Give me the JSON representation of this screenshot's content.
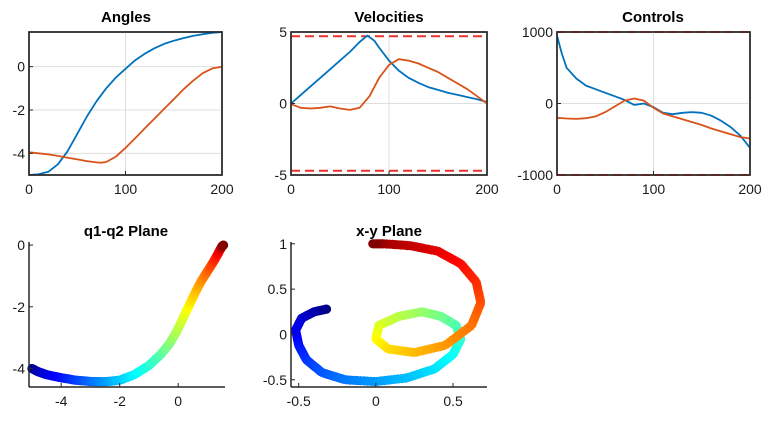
{
  "chart_data": [
    {
      "type": "line",
      "title": "Angles",
      "xlim": [
        0,
        200
      ],
      "ylim": [
        -5,
        1.6
      ],
      "xticks": [
        0,
        100,
        200
      ],
      "xticklabels": [
        "0",
        "100",
        "200"
      ],
      "yticks": [
        0,
        -2,
        -4
      ],
      "yticklabels": [
        "0",
        "-2",
        "-4"
      ],
      "grid": true,
      "box": true,
      "series": [
        {
          "color": "#0072BD",
          "x": [
            0,
            10,
            20,
            30,
            40,
            50,
            60,
            70,
            80,
            90,
            100,
            110,
            120,
            130,
            140,
            150,
            160,
            170,
            180,
            190,
            200
          ],
          "y": [
            -5.0,
            -4.97,
            -4.85,
            -4.5,
            -3.9,
            -3.1,
            -2.3,
            -1.6,
            -1.0,
            -0.5,
            -0.1,
            0.3,
            0.6,
            0.85,
            1.05,
            1.2,
            1.32,
            1.42,
            1.5,
            1.56,
            1.6
          ]
        },
        {
          "color": "#D95319",
          "x": [
            0,
            10,
            20,
            30,
            40,
            50,
            60,
            70,
            75,
            80,
            90,
            100,
            110,
            120,
            130,
            140,
            150,
            160,
            170,
            180,
            190,
            200
          ],
          "y": [
            -3.95,
            -4.0,
            -4.05,
            -4.12,
            -4.2,
            -4.28,
            -4.36,
            -4.42,
            -4.43,
            -4.4,
            -4.15,
            -3.75,
            -3.3,
            -2.85,
            -2.4,
            -1.95,
            -1.5,
            -1.05,
            -0.65,
            -0.3,
            -0.08,
            0.0
          ]
        }
      ]
    },
    {
      "type": "line",
      "title": "Velocities",
      "xlim": [
        0,
        200
      ],
      "ylim": [
        -5,
        5
      ],
      "xticks": [
        0,
        100,
        200
      ],
      "xticklabels": [
        "0",
        "100",
        "200"
      ],
      "yticks": [
        5,
        0,
        -5
      ],
      "yticklabels": [
        "5",
        "0",
        "-5"
      ],
      "grid": true,
      "box": true,
      "reference_lines": [
        4.7,
        -4.7
      ],
      "series": [
        {
          "color": "#0072BD",
          "x": [
            0,
            10,
            20,
            30,
            40,
            50,
            60,
            70,
            78,
            85,
            90,
            100,
            110,
            120,
            130,
            140,
            150,
            160,
            170,
            180,
            190,
            200
          ],
          "y": [
            0.0,
            0.6,
            1.2,
            1.8,
            2.4,
            3.0,
            3.6,
            4.3,
            4.75,
            4.4,
            3.9,
            3.0,
            2.3,
            1.8,
            1.45,
            1.15,
            0.95,
            0.75,
            0.6,
            0.45,
            0.3,
            0.1
          ]
        },
        {
          "color": "#D95319",
          "x": [
            0,
            10,
            20,
            30,
            40,
            50,
            60,
            70,
            80,
            90,
            100,
            110,
            120,
            130,
            140,
            150,
            160,
            170,
            180,
            190,
            200
          ],
          "y": [
            -0.05,
            -0.3,
            -0.35,
            -0.3,
            -0.2,
            -0.35,
            -0.45,
            -0.3,
            0.5,
            1.8,
            2.7,
            3.1,
            3.0,
            2.8,
            2.5,
            2.2,
            1.8,
            1.4,
            1.0,
            0.5,
            0.0
          ]
        }
      ]
    },
    {
      "type": "line",
      "title": "Controls",
      "xlim": [
        0,
        200
      ],
      "ylim": [
        -1000,
        1000
      ],
      "xticks": [
        0,
        100,
        200
      ],
      "xticklabels": [
        "0",
        "100",
        "200"
      ],
      "yticks": [
        1000,
        0,
        -1000
      ],
      "yticklabels": [
        "1000",
        "0",
        "-1000"
      ],
      "grid": true,
      "box": true,
      "reference_lines": [
        1000,
        -1000
      ],
      "series": [
        {
          "color": "#0072BD",
          "x": [
            0,
            5,
            10,
            20,
            30,
            40,
            50,
            60,
            70,
            80,
            90,
            100,
            110,
            120,
            130,
            140,
            150,
            160,
            170,
            180,
            190,
            200
          ],
          "y": [
            950,
            700,
            500,
            350,
            250,
            200,
            150,
            100,
            50,
            -20,
            0,
            -50,
            -130,
            -150,
            -130,
            -120,
            -130,
            -170,
            -240,
            -330,
            -450,
            -620
          ]
        },
        {
          "color": "#D95319",
          "x": [
            0,
            10,
            20,
            30,
            40,
            50,
            60,
            70,
            80,
            90,
            100,
            110,
            120,
            130,
            140,
            150,
            160,
            170,
            180,
            190,
            200
          ],
          "y": [
            -200,
            -210,
            -215,
            -205,
            -180,
            -120,
            -40,
            40,
            70,
            40,
            -60,
            -140,
            -180,
            -220,
            -260,
            -300,
            -350,
            -390,
            -430,
            -470,
            -490
          ]
        }
      ]
    },
    {
      "type": "scatter",
      "title": "q1-q2 Plane",
      "xlim": [
        -5.1,
        1.6
      ],
      "ylim": [
        -4.6,
        0.1
      ],
      "xticks": [
        -4,
        -2,
        0
      ],
      "xticklabels": [
        "-4",
        "-2",
        "0"
      ],
      "yticks": [
        0,
        -2,
        -4
      ],
      "yticklabels": [
        "0",
        "-2",
        "-4"
      ],
      "grid": false,
      "box": false,
      "colormap": "jet",
      "path": {
        "x": [
          -5.0,
          -4.8,
          -4.5,
          -4.0,
          -3.5,
          -3.0,
          -2.5,
          -2.0,
          -1.5,
          -1.0,
          -0.6,
          -0.3,
          -0.05,
          0.2,
          0.4,
          0.6,
          0.8,
          1.0,
          1.2,
          1.35,
          1.45,
          1.5,
          1.55
        ],
        "y": [
          -4.0,
          -4.1,
          -4.2,
          -4.3,
          -4.38,
          -4.42,
          -4.43,
          -4.38,
          -4.2,
          -3.9,
          -3.55,
          -3.2,
          -2.8,
          -2.3,
          -1.9,
          -1.5,
          -1.15,
          -0.85,
          -0.55,
          -0.3,
          -0.12,
          -0.04,
          0.0
        ]
      }
    },
    {
      "type": "scatter",
      "title": "x-y Plane",
      "xlim": [
        -0.55,
        0.72
      ],
      "ylim": [
        -0.58,
        1.02
      ],
      "xticks": [
        -0.5,
        0,
        0.5
      ],
      "xticklabels": [
        "-0.5",
        "0",
        "0.5"
      ],
      "yticks": [
        1,
        0.5,
        0,
        -0.5
      ],
      "yticklabels": [
        "1",
        "0.5",
        "0",
        "-0.5"
      ],
      "grid": false,
      "box": false,
      "colormap": "jet",
      "path": {
        "x": [
          -0.32,
          -0.4,
          -0.48,
          -0.52,
          -0.5,
          -0.45,
          -0.35,
          -0.2,
          0.0,
          0.2,
          0.38,
          0.5,
          0.55,
          0.52,
          0.42,
          0.3,
          0.15,
          0.02,
          0.0,
          0.08,
          0.25,
          0.45,
          0.62,
          0.68,
          0.65,
          0.55,
          0.4,
          0.22,
          0.05,
          -0.02
        ],
        "y": [
          0.28,
          0.25,
          0.18,
          0.05,
          -0.12,
          -0.28,
          -0.42,
          -0.5,
          -0.52,
          -0.48,
          -0.38,
          -0.22,
          -0.05,
          0.1,
          0.2,
          0.25,
          0.2,
          0.1,
          -0.05,
          -0.16,
          -0.2,
          -0.12,
          0.1,
          0.35,
          0.58,
          0.78,
          0.92,
          0.98,
          1.0,
          1.0
        ]
      }
    }
  ]
}
